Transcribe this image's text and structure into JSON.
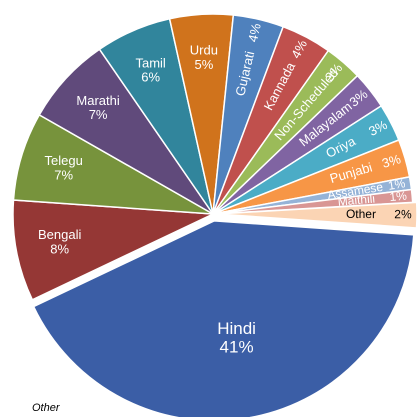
{
  "chart_data": {
    "type": "pie",
    "categories": [
      "Hindi",
      "Bengali",
      "Telegu",
      "Marathi",
      "Tamil",
      "Urdu",
      "Gujarati",
      "Kannada",
      "Non-Scheduled",
      "Malayalam",
      "Oriya",
      "Punjabi",
      "Assamese",
      "Maithili",
      "Other"
    ],
    "values": [
      41,
      8,
      7,
      7,
      6,
      5,
      4,
      4,
      3,
      3,
      3,
      3,
      1,
      1,
      2
    ],
    "value_labels": [
      "41%",
      "8%",
      "7%",
      "7%",
      "6%",
      "5%",
      "4%",
      "4%",
      "3%",
      "3%",
      "3%",
      "3%",
      "1%",
      "1%",
      "2%"
    ],
    "colors": [
      "#3b5ea6",
      "#953735",
      "#77933c",
      "#604a7b",
      "#31859c",
      "#d0731c",
      "#4f81bd",
      "#c0504d",
      "#9bbb59",
      "#8064a2",
      "#4bacc6",
      "#f79646",
      "#95b3d7",
      "#d99694",
      "#fbd4b4"
    ],
    "annotation": "Other"
  }
}
